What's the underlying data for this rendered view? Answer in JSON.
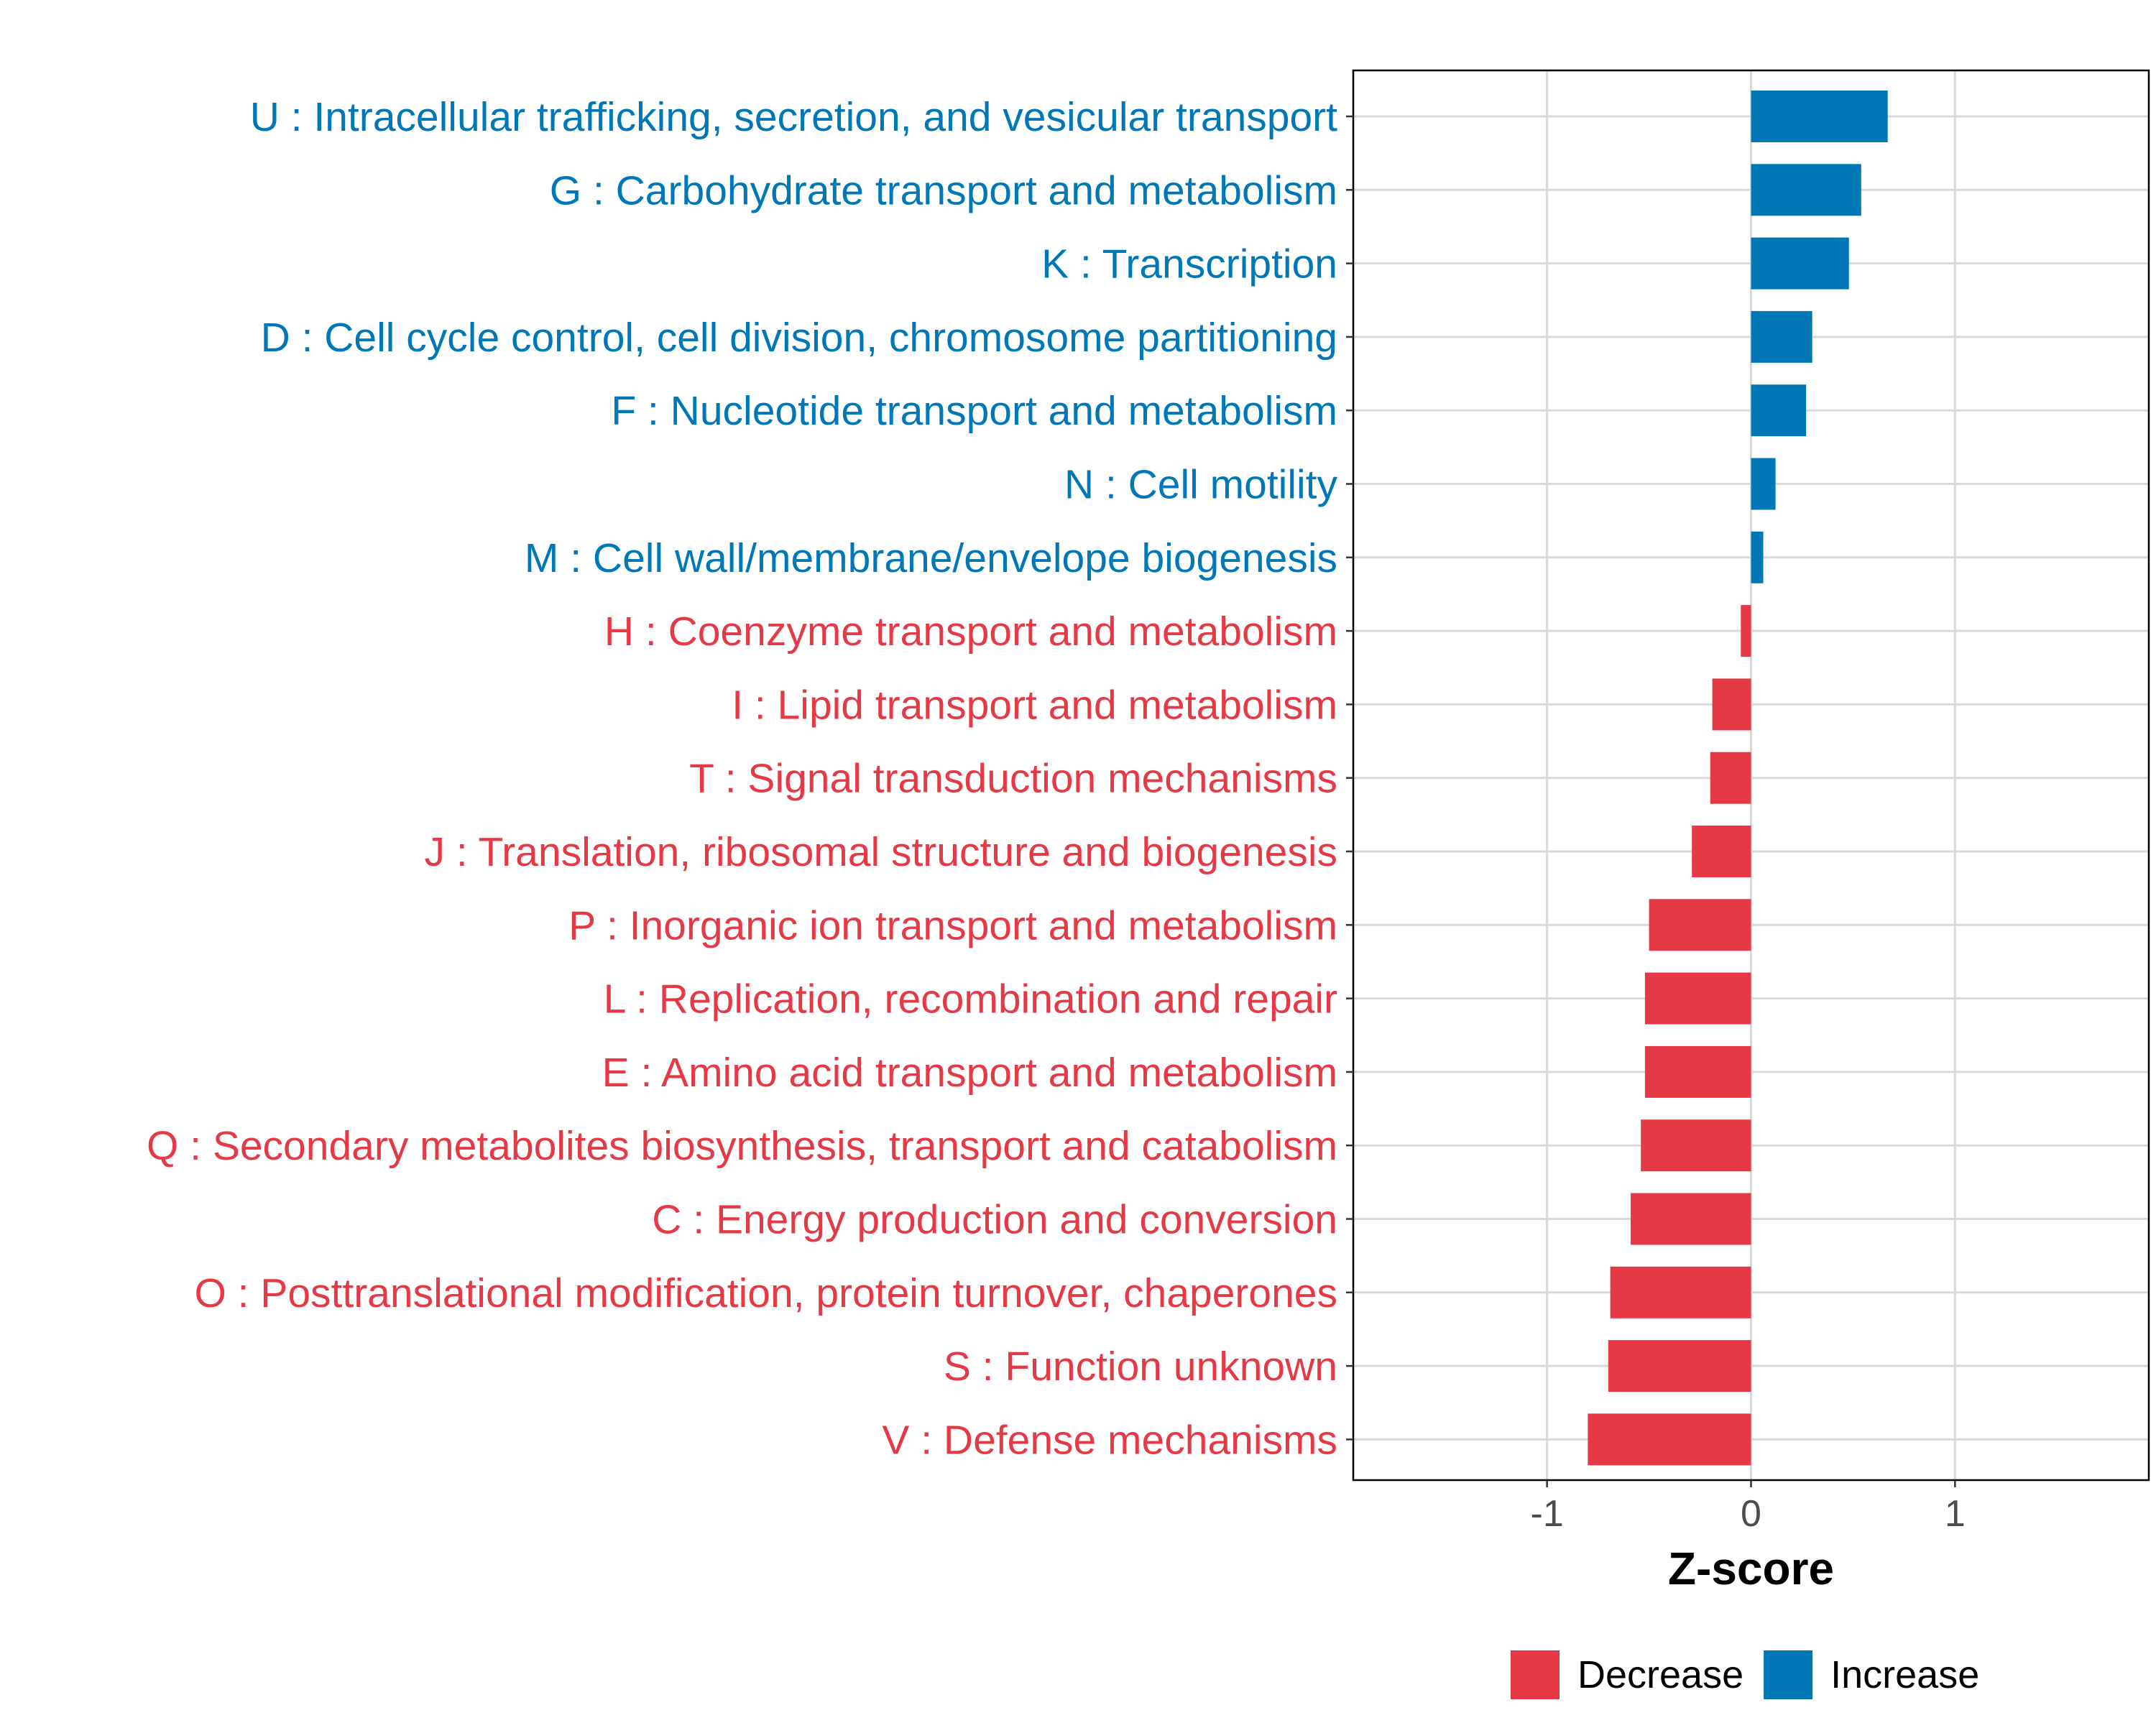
{
  "chart_data": {
    "type": "bar",
    "orientation": "horizontal",
    "xlabel": "Z-score",
    "ylabel": "",
    "xlim": [
      -1.95,
      1.95
    ],
    "xticks": [
      -1,
      0,
      1
    ],
    "xtick_labels": [
      "-1",
      "0",
      "1"
    ],
    "grid": true,
    "legend_position": "bottom",
    "legend": [
      {
        "label": "Decrease",
        "color": "#E63946"
      },
      {
        "label": "Increase",
        "color": "#0077B6"
      }
    ],
    "categories": [
      {
        "label": "U : Intracellular trafficking, secretion, and vesicular transport",
        "value": 0.67,
        "direction": "Increase"
      },
      {
        "label": "G : Carbohydrate transport and metabolism",
        "value": 0.54,
        "direction": "Increase"
      },
      {
        "label": "K : Transcription",
        "value": 0.48,
        "direction": "Increase"
      },
      {
        "label": "D : Cell cycle control, cell division, chromosome partitioning",
        "value": 0.3,
        "direction": "Increase"
      },
      {
        "label": "F : Nucleotide transport and metabolism",
        "value": 0.27,
        "direction": "Increase"
      },
      {
        "label": "N : Cell motility",
        "value": 0.12,
        "direction": "Increase"
      },
      {
        "label": "M : Cell wall/membrane/envelope biogenesis",
        "value": 0.06,
        "direction": "Increase"
      },
      {
        "label": "H : Coenzyme transport and metabolism",
        "value": -0.05,
        "direction": "Decrease"
      },
      {
        "label": "I : Lipid transport and metabolism",
        "value": -0.19,
        "direction": "Decrease"
      },
      {
        "label": "T : Signal transduction mechanisms",
        "value": -0.2,
        "direction": "Decrease"
      },
      {
        "label": "J : Translation, ribosomal structure and biogenesis",
        "value": -0.29,
        "direction": "Decrease"
      },
      {
        "label": "P : Inorganic ion transport and metabolism",
        "value": -0.5,
        "direction": "Decrease"
      },
      {
        "label": "L : Replication, recombination and repair",
        "value": -0.52,
        "direction": "Decrease"
      },
      {
        "label": "E : Amino acid transport and metabolism",
        "value": -0.52,
        "direction": "Decrease"
      },
      {
        "label": "Q : Secondary metabolites biosynthesis, transport and catabolism",
        "value": -0.54,
        "direction": "Decrease"
      },
      {
        "label": "C : Energy production and conversion",
        "value": -0.59,
        "direction": "Decrease"
      },
      {
        "label": "O : Posttranslational modification, protein turnover, chaperones",
        "value": -0.69,
        "direction": "Decrease"
      },
      {
        "label": "S : Function unknown",
        "value": -0.7,
        "direction": "Decrease"
      },
      {
        "label": "V : Defense mechanisms",
        "value": -0.8,
        "direction": "Decrease"
      }
    ]
  }
}
